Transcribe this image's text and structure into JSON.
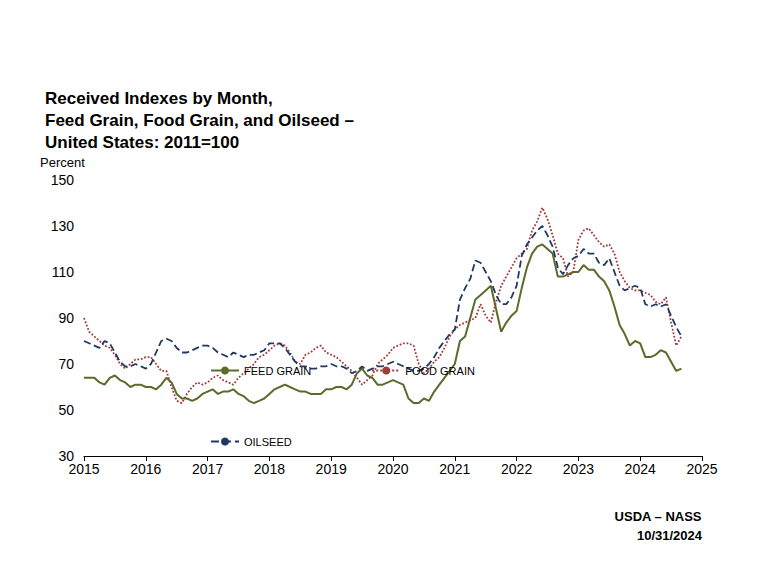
{
  "chart_data": {
    "type": "line",
    "title": "Received Indexes by Month,\nFeed Grain, Food Grain, and Oilseed –\nUnited States: 2011=100",
    "ylabel": "Percent",
    "annotations": [
      "USDA – NASS",
      "10/31/2024"
    ],
    "x": [
      2015,
      2015.083,
      2015.167,
      2015.25,
      2015.333,
      2015.417,
      2015.5,
      2015.583,
      2015.667,
      2015.75,
      2015.833,
      2015.917,
      2016,
      2016.083,
      2016.167,
      2016.25,
      2016.333,
      2016.417,
      2016.5,
      2016.583,
      2016.667,
      2016.75,
      2016.833,
      2016.917,
      2017,
      2017.083,
      2017.167,
      2017.25,
      2017.333,
      2017.417,
      2017.5,
      2017.583,
      2017.667,
      2017.75,
      2017.833,
      2017.917,
      2018,
      2018.083,
      2018.167,
      2018.25,
      2018.333,
      2018.417,
      2018.5,
      2018.583,
      2018.667,
      2018.75,
      2018.833,
      2018.917,
      2019,
      2019.083,
      2019.167,
      2019.25,
      2019.333,
      2019.417,
      2019.5,
      2019.583,
      2019.667,
      2019.75,
      2019.833,
      2019.917,
      2020,
      2020.083,
      2020.167,
      2020.25,
      2020.333,
      2020.417,
      2020.5,
      2020.583,
      2020.667,
      2020.75,
      2020.833,
      2020.917,
      2021,
      2021.083,
      2021.167,
      2021.25,
      2021.333,
      2021.417,
      2021.5,
      2021.583,
      2021.667,
      2021.75,
      2021.833,
      2021.917,
      2022,
      2022.083,
      2022.167,
      2022.25,
      2022.333,
      2022.417,
      2022.5,
      2022.583,
      2022.667,
      2022.75,
      2022.833,
      2022.917,
      2023,
      2023.083,
      2023.167,
      2023.25,
      2023.333,
      2023.417,
      2023.5,
      2023.583,
      2023.667,
      2023.75,
      2023.833,
      2023.917,
      2024,
      2024.083,
      2024.167,
      2024.25,
      2024.333,
      2024.417,
      2024.5,
      2024.583,
      2024.667
    ],
    "series": [
      {
        "name": "FEED GRAIN",
        "color": "#5a6b2b",
        "line_style": "solid",
        "values": [
          64,
          64,
          64,
          62,
          61,
          64,
          65,
          63,
          62,
          60,
          61,
          61,
          60,
          60,
          59,
          61,
          64,
          62,
          57,
          55,
          55,
          54,
          55,
          57,
          58,
          59,
          57,
          58,
          58,
          59,
          57,
          56,
          54,
          53,
          54,
          55,
          57,
          59,
          60,
          61,
          60,
          59,
          58,
          58,
          57,
          57,
          57,
          59,
          59,
          60,
          60,
          59,
          61,
          66,
          68,
          65,
          64,
          61,
          61,
          62,
          63,
          62,
          61,
          55,
          53,
          53,
          55,
          54,
          58,
          61,
          64,
          67,
          70,
          80,
          82,
          90,
          98,
          100,
          102,
          104,
          94,
          84,
          88,
          91,
          93,
          103,
          112,
          118,
          121,
          122,
          120,
          118,
          108,
          108,
          109,
          110,
          110,
          113,
          111,
          111,
          108,
          106,
          102,
          95,
          87,
          83,
          78,
          80,
          79,
          73,
          73,
          74,
          76,
          75,
          71,
          67,
          68
        ]
      },
      {
        "name": "FOOD GRAIN",
        "color": "#a33a3a",
        "line_style": "dotted",
        "values": [
          90,
          84,
          82,
          80,
          78,
          77,
          74,
          70,
          68,
          70,
          72,
          72,
          73,
          73,
          70,
          67,
          67,
          60,
          54,
          53,
          57,
          60,
          62,
          61,
          62,
          64,
          65,
          63,
          62,
          61,
          64,
          66,
          68,
          70,
          73,
          74,
          76,
          78,
          79,
          78,
          75,
          71,
          70,
          74,
          75,
          77,
          78,
          75,
          74,
          73,
          71,
          69,
          67,
          64,
          61,
          63,
          65,
          70,
          72,
          74,
          77,
          78,
          79,
          79,
          78,
          70,
          66,
          68,
          71,
          73,
          77,
          82,
          85,
          87,
          88,
          89,
          90,
          96,
          91,
          88,
          97,
          104,
          108,
          112,
          116,
          118,
          120,
          128,
          132,
          138,
          133,
          126,
          118,
          116,
          108,
          110,
          124,
          128,
          129,
          126,
          123,
          121,
          122,
          118,
          110,
          106,
          103,
          102,
          102,
          101,
          100,
          97,
          96,
          99,
          88,
          78,
          82
        ]
      },
      {
        "name": "OILSEED",
        "color": "#1f3864",
        "line_style": "dashed",
        "values": [
          80,
          79,
          78,
          77,
          80,
          79,
          75,
          71,
          69,
          69,
          70,
          69,
          68,
          70,
          75,
          80,
          81,
          80,
          77,
          75,
          75,
          76,
          77,
          78,
          78,
          77,
          75,
          74,
          73,
          75,
          74,
          73,
          74,
          74,
          75,
          76,
          79,
          79,
          79,
          77,
          74,
          71,
          69,
          69,
          68,
          68,
          69,
          69,
          70,
          69,
          69,
          68,
          66,
          67,
          69,
          67,
          68,
          69,
          69,
          70,
          71,
          70,
          69,
          68,
          67,
          67,
          68,
          70,
          73,
          77,
          80,
          83,
          85,
          98,
          103,
          107,
          115,
          114,
          110,
          106,
          100,
          96,
          96,
          99,
          104,
          117,
          122,
          125,
          128,
          130,
          126,
          121,
          112,
          109,
          113,
          116,
          117,
          120,
          118,
          118,
          114,
          113,
          116,
          110,
          104,
          102,
          103,
          104,
          103,
          96,
          95,
          96,
          95,
          96,
          91,
          86,
          82
        ]
      }
    ],
    "xlim": [
      2015,
      2025
    ],
    "xticks": [
      2015,
      2016,
      2017,
      2018,
      2019,
      2020,
      2021,
      2022,
      2023,
      2024,
      2025
    ],
    "ylim": [
      30,
      150
    ],
    "yticks": [
      30,
      50,
      70,
      90,
      110,
      130,
      150
    ],
    "grid": true,
    "legend": "lower left"
  }
}
